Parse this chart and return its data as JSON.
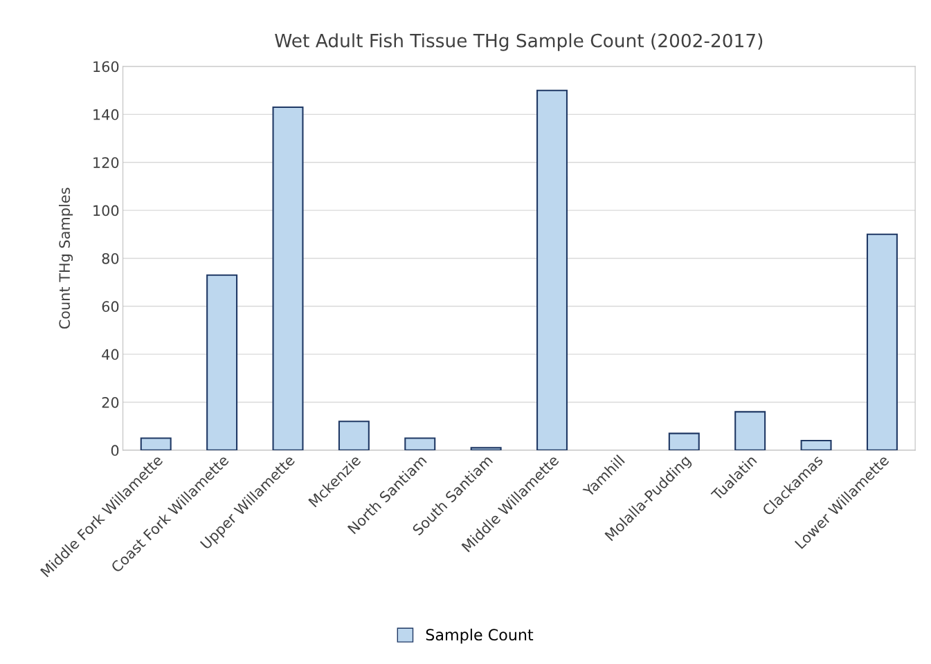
{
  "chart_data": {
    "type": "bar",
    "title": "Wet Adult Fish Tissue THg Sample Count (2002-2017)",
    "ylabel": "Count THg Samples",
    "categories": [
      "Middle Fork Willamette",
      "Coast Fork Willamette",
      "Upper Willamette",
      "Mckenzie",
      "North Santiam",
      "South Santiam",
      "Middle Willamette",
      "Yamhill",
      "Molalla-Pudding",
      "Tualatin",
      "Clackamas",
      "Lower Willamette"
    ],
    "series": [
      {
        "name": "Sample Count",
        "color": "#bdd7ee",
        "values": [
          5,
          73,
          143,
          12,
          5,
          1,
          150,
          null,
          7,
          16,
          4,
          90
        ]
      }
    ],
    "ylim": [
      0,
      160
    ],
    "yticks": [
      0,
      20,
      40,
      60,
      80,
      100,
      120,
      140,
      160
    ],
    "grid": "y",
    "legend": "bottom"
  }
}
